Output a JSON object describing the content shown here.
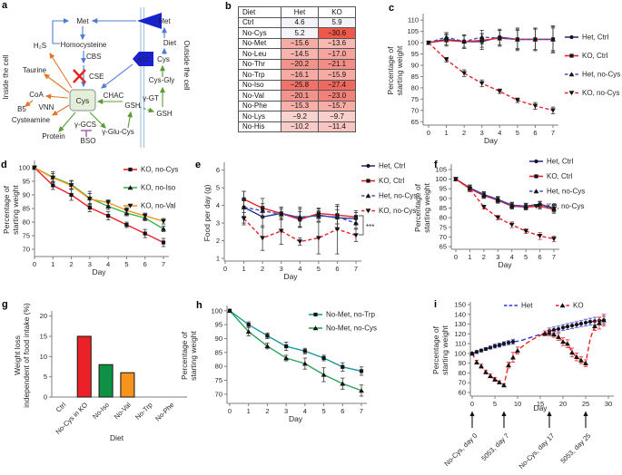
{
  "panels": {
    "a": "a",
    "b": "b",
    "c": "c",
    "d": "d",
    "e": "e",
    "f": "f",
    "g": "g",
    "h": "h",
    "i": "i"
  },
  "panel_a": {
    "nodes": {
      "met_in": "Met",
      "homocysteine": "Homocysteine",
      "cbs": "CBS",
      "cse": "CSE",
      "h2s": "H₂S",
      "taurine": "Taurine",
      "coa": "CoA",
      "b5": "B5",
      "vnn": "VNN",
      "cysteamine": "Cysteamine",
      "cys": "Cys",
      "chac": "CHAC",
      "gsh_in": "GSH",
      "ggcs": "γ-GCS",
      "bso": "BSO",
      "protein": "Protein",
      "gglucys": "γ-Glu-Cys",
      "met_out": "Met",
      "diet": "Diet",
      "cys_out": "Cys",
      "cysgly": "Cys-Gly",
      "ggt": "γ-GT",
      "gsh_out": "GSH",
      "xct": "xCT",
      "inside": "Inside the cell",
      "outside": "Outside the cell"
    },
    "colors": {
      "arrow_blue": "#4f7bd0",
      "arrow_orange": "#e0762a",
      "arrow_green": "#5b9b35",
      "transporter": "#1822cc",
      "inhibitor": "#9b59b6",
      "block_x": "#e8241c",
      "cys_box_fill": "#e3efd9",
      "cys_box_stroke": "#8a8d8f",
      "membrane": "#a9c4e2"
    }
  },
  "panel_b": {
    "headers": [
      "Diet",
      "Het",
      "KO"
    ],
    "rows": [
      [
        "Ctrl",
        "4.6",
        "5.9"
      ],
      [
        "No-Cys",
        "5.2",
        "−30.6"
      ],
      [
        "No-Met",
        "−15.6",
        "−13.6"
      ],
      [
        "No-Leu",
        "−14.5",
        "−17.0"
      ],
      [
        "No-Thr",
        "−20.2",
        "−21.1"
      ],
      [
        "No-Trp",
        "−16.1",
        "−15.9"
      ],
      [
        "No-Iso",
        "−25.8",
        "−27.4"
      ],
      [
        "No-Val",
        "−20.1",
        "−23.0"
      ],
      [
        "No-Phe",
        "−15.3",
        "−15.7"
      ],
      [
        "No-Lys",
        "−9.2",
        "−9.7"
      ],
      [
        "No-His",
        "−10.2",
        "−11.4"
      ]
    ]
  },
  "chart_data": [
    {
      "id": "c",
      "type": "line",
      "xlabel": "Day",
      "ylabel": [
        "Percentage of",
        "starting weight"
      ],
      "x": [
        0,
        1,
        2,
        3,
        4,
        5,
        6,
        7
      ],
      "xticks": [
        0,
        1,
        2,
        3,
        4,
        5,
        6,
        7
      ],
      "yticks": [
        65,
        70,
        75,
        80,
        85,
        90,
        95,
        100,
        105,
        110
      ],
      "ylim": [
        65,
        110
      ],
      "series": [
        {
          "name": "Het, Ctrl",
          "color": "#2a338e",
          "marker": "circle",
          "values": [
            100,
            101.5,
            100.5,
            100.5,
            102.5,
            101.5,
            101.5,
            101.5
          ],
          "err": [
            0,
            2.5,
            3,
            3.5,
            3.5,
            5,
            5,
            6
          ]
        },
        {
          "name": "KO, Ctrl",
          "color": "#ec2027",
          "marker": "square",
          "values": [
            100,
            101,
            100.5,
            101,
            102,
            101.5,
            101.5,
            101.5
          ],
          "err": [
            0,
            2.5,
            3,
            3,
            3.5,
            4.5,
            5,
            5.5
          ]
        },
        {
          "name": "Het, no-Cys",
          "color": "#3f51c1",
          "dashed": true,
          "marker": "triangle",
          "values": [
            100,
            102.5,
            100.5,
            102.5,
            102,
            101.5,
            101.5,
            101.5
          ],
          "err": [
            0,
            2,
            2.5,
            3,
            3.5,
            4,
            4.5,
            5
          ]
        },
        {
          "name": "KO, no-Cys",
          "color": "#ec2027",
          "dashed": true,
          "marker": "triangle-down",
          "values": [
            100,
            92.5,
            86.5,
            82,
            78.5,
            74.5,
            72,
            70
          ],
          "err": [
            0,
            1,
            1.5,
            1.5,
            1,
            1,
            1.5,
            1.5
          ]
        }
      ]
    },
    {
      "id": "d",
      "type": "line",
      "xlabel": "Day",
      "ylabel": [
        "Percentage of",
        "starting weight"
      ],
      "x": [
        0,
        1,
        2,
        3,
        4,
        5,
        6,
        7
      ],
      "xticks": [
        0,
        1,
        2,
        3,
        4,
        5,
        6,
        7
      ],
      "yticks": [
        70,
        75,
        80,
        85,
        90,
        95,
        100
      ],
      "ylim": [
        70,
        100
      ],
      "series": [
        {
          "name": "KO, no-Cys",
          "color": "#ec2027",
          "marker": "square",
          "values": [
            100,
            93.5,
            90,
            85.3,
            82.3,
            79,
            75.8,
            72.5
          ],
          "err": [
            0,
            1.5,
            2,
            1.5,
            1.5,
            1,
            1.5,
            1.5
          ]
        },
        {
          "name": "KO, no-Iso",
          "color": "#3ab54a",
          "marker": "triangle",
          "values": [
            100,
            96.5,
            93.8,
            88.8,
            85.8,
            83.3,
            81.5,
            77.5
          ],
          "err": [
            0,
            2,
            1.5,
            2.5,
            1.2,
            1,
            1,
            1
          ]
        },
        {
          "name": "KO, no-Val",
          "color": "#f7941d",
          "marker": "triangle-down",
          "values": [
            100,
            96.3,
            93.5,
            88.5,
            87.2,
            84.3,
            82.3,
            80.3
          ],
          "err": [
            0,
            1.5,
            1.5,
            2,
            1,
            1,
            1,
            1
          ]
        }
      ]
    },
    {
      "id": "e",
      "type": "line",
      "xlabel": "Day",
      "ylabel": [
        "Food per day (g)"
      ],
      "x": [
        1,
        2,
        3,
        4,
        5,
        6,
        7
      ],
      "xticks": [
        0,
        1,
        2,
        3,
        4,
        5,
        6,
        7
      ],
      "yticks": [
        1,
        2,
        3,
        4,
        5,
        6
      ],
      "ylim": [
        1,
        6
      ],
      "series": [
        {
          "name": "Het, Ctrl",
          "color": "#2a338e",
          "marker": "circle",
          "values": [
            3.9,
            3.35,
            3.55,
            3.3,
            3.45,
            3.3,
            3.25
          ],
          "err": [
            0.9,
            0.6,
            0.35,
            0.5,
            0.35,
            0.65,
            0.35
          ]
        },
        {
          "name": "KO, Ctrl",
          "color": "#ec2027",
          "marker": "square",
          "values": [
            4.35,
            3.85,
            3.55,
            3.2,
            3.55,
            3.45,
            3.35
          ],
          "err": [
            0.45,
            0.55,
            0.35,
            0.45,
            0.3,
            0.5,
            0.35
          ]
        },
        {
          "name": "Het, no-Cys",
          "color": "#3f51c1",
          "dashed": true,
          "marker": "triangle",
          "values": [
            3.9,
            3.7,
            3.5,
            3.35,
            3.4,
            3.35,
            3.0
          ],
          "err": [
            0.5,
            0.4,
            0.3,
            0.55,
            0.3,
            0.4,
            0.3
          ]
        },
        {
          "name": "KO, no-Cys",
          "color": "#ec2027",
          "dashed": true,
          "marker": "triangle-down",
          "values": [
            3.25,
            2.15,
            2.55,
            1.95,
            2.15,
            2.65,
            2.3
          ],
          "err": [
            0.35,
            0.7,
            0.75,
            0.2,
            0.9,
            1.4,
            0.35
          ]
        }
      ],
      "annotations": [
        {
          "type": "bracket",
          "label": "***"
        }
      ]
    },
    {
      "id": "f",
      "type": "line",
      "xlabel": "Day",
      "ylabel": [
        "Percentage of",
        "starting weight"
      ],
      "x": [
        0,
        1,
        2,
        3,
        4,
        5,
        6,
        7
      ],
      "xticks": [
        0,
        1,
        2,
        3,
        4,
        5,
        6,
        7
      ],
      "yticks": [
        65,
        70,
        75,
        80,
        85,
        90,
        95,
        100,
        105
      ],
      "ylim": [
        65,
        105
      ],
      "series": [
        {
          "name": "Het, Ctrl",
          "color": "#2a338e",
          "marker": "circle",
          "values": [
            100,
            95.5,
            92,
            89.5,
            86.5,
            86,
            87,
            85
          ],
          "err": [
            0,
            1.5,
            1.5,
            1.5,
            1.5,
            1.5,
            1.5,
            2
          ]
        },
        {
          "name": "KO, Ctrl",
          "color": "#ec2027",
          "marker": "square",
          "values": [
            100,
            95,
            91.5,
            89,
            86,
            85.5,
            86,
            84.3
          ],
          "err": [
            0,
            1.5,
            1.5,
            1.5,
            1.5,
            1.5,
            1.5,
            2
          ]
        },
        {
          "name": "Het, no-Cys",
          "color": "#3f51c1",
          "dashed": true,
          "marker": "triangle",
          "values": [
            100,
            95.3,
            91.8,
            89.3,
            86.3,
            85.8,
            86.8,
            84.8
          ],
          "err": [
            0,
            1.5,
            1.5,
            1.5,
            1.5,
            1.5,
            1.5,
            1.8
          ]
        },
        {
          "name": "KO, no-Cys",
          "color": "#ec2027",
          "dashed": true,
          "marker": "triangle-down",
          "err_color": "#c7453c",
          "values": [
            100,
            95,
            85.5,
            80,
            76.3,
            73,
            70.5,
            69
          ],
          "err": [
            0,
            1,
            1,
            1.2,
            1.5,
            1.2,
            1.8,
            1.5
          ]
        }
      ]
    },
    {
      "id": "g",
      "type": "bar",
      "xlabel": "Diet",
      "ylabel": [
        "Weight loss",
        "independent of food intake (%)"
      ],
      "categories": [
        "Ctrl",
        "No-Cys in KO",
        "No-Iso",
        "No-Val",
        "No-Trp",
        "No-Phe"
      ],
      "values": [
        0,
        15,
        8,
        6,
        0,
        0
      ],
      "bar_colors": [
        "",
        "#ec2027",
        "#0e9144",
        "#f7941d",
        "",
        ""
      ],
      "yticks": [
        0,
        5,
        10,
        15,
        20
      ],
      "ylim": [
        0,
        20
      ]
    },
    {
      "id": "h",
      "type": "line",
      "xlabel": "Day",
      "ylabel": [
        "Percentage of",
        "starting weight"
      ],
      "x": [
        0,
        1,
        2,
        3,
        4,
        5,
        6,
        7
      ],
      "xticks": [
        0,
        1,
        2,
        3,
        4,
        5,
        6,
        7
      ],
      "yticks": [
        70,
        75,
        80,
        85,
        90,
        95,
        100
      ],
      "ylim": [
        70,
        100
      ],
      "series": [
        {
          "name": "No-Met, no-Trp",
          "color": "#189aa5",
          "marker": "square",
          "values": [
            100,
            95,
            91,
            87.2,
            85.5,
            83,
            79.8,
            78.3
          ],
          "err": [
            0,
            1,
            1,
            1.5,
            1,
            1,
            1.5,
            1.5
          ]
        },
        {
          "name": "No-Met, no-Cys",
          "color": "#2ea25a",
          "marker": "triangle",
          "values": [
            100,
            92.5,
            87.3,
            83,
            81,
            77,
            73.8,
            71.3
          ],
          "err": [
            0,
            1.5,
            1,
            1,
            2,
            2.5,
            2,
            2
          ]
        }
      ]
    },
    {
      "id": "i",
      "type": "line",
      "xlabel": "Day",
      "ylabel": [
        "Percentage of",
        "starting weight"
      ],
      "x": [
        0,
        1,
        2,
        3,
        4,
        5,
        6,
        7,
        8,
        9,
        10,
        11,
        12,
        13,
        14,
        15,
        16,
        17,
        18,
        19,
        20,
        21,
        22,
        23,
        24,
        25,
        26,
        27,
        28,
        29
      ],
      "xticks": [
        0,
        5,
        10,
        15,
        20,
        25,
        30
      ],
      "yticks": [
        60,
        70,
        80,
        90,
        100,
        110,
        120,
        130,
        140,
        150
      ],
      "ylim": [
        60,
        150
      ],
      "series": [
        {
          "name": "Het",
          "color": "#2a35d6",
          "dashed": true,
          "marker": "circle",
          "legend_marker": false,
          "err_color": "#3a44cc",
          "values": [
            100,
            101.5,
            103,
            104.5,
            106,
            107.5,
            108.5,
            110,
            111,
            112,
            112.5,
            113.5,
            115,
            116.5,
            118,
            119.5,
            121,
            123,
            124,
            125,
            126.5,
            127.5,
            128.5,
            129.5,
            130.5,
            131.5,
            132.5,
            133,
            133.5,
            134
          ],
          "err": [
            0,
            1.5,
            1.5,
            1.5,
            1.5,
            2,
            2,
            2,
            2,
            2.5,
            0,
            0,
            0,
            0,
            0,
            0,
            0,
            3,
            3,
            3,
            3,
            3,
            3,
            3,
            3,
            3.5,
            3.5,
            4,
            3.5,
            4
          ],
          "markers_at": [
            0,
            1,
            2,
            3,
            4,
            5,
            6,
            7,
            8,
            9,
            17,
            18,
            19,
            20,
            21,
            22,
            23,
            24,
            25,
            26,
            27,
            28,
            29
          ]
        },
        {
          "name": "KO",
          "color": "#ec2027",
          "dashed": true,
          "marker": "triangle",
          "err_color": "#ec2027",
          "values": [
            100,
            91,
            87,
            81,
            77,
            73.5,
            70.5,
            67.5,
            88,
            96,
            103,
            107,
            110.5,
            113.5,
            116,
            118.5,
            120.5,
            121,
            119.5,
            117,
            112,
            110,
            101,
            96.5,
            93,
            90,
            115,
            128,
            131,
            134
          ],
          "err": [
            0,
            2,
            2,
            2,
            2,
            2,
            1.5,
            1.5,
            3,
            5,
            3.5,
            0,
            0,
            0,
            0,
            0,
            2.5,
            3,
            3,
            3.5,
            4,
            4,
            4.5,
            4,
            3.5,
            3.5,
            0,
            4.5,
            6,
            6
          ],
          "markers_at": [
            0,
            1,
            2,
            3,
            4,
            5,
            6,
            7,
            8,
            9,
            10,
            16,
            17,
            18,
            19,
            20,
            21,
            22,
            23,
            24,
            25,
            27,
            28,
            29
          ]
        }
      ],
      "treatments": [
        {
          "day": 0,
          "label": "No-Cys, day 0"
        },
        {
          "day": 7,
          "label": "5053, day 7"
        },
        {
          "day": 17,
          "label": "No-Cys, day 17"
        },
        {
          "day": 25,
          "label": "5053, day 25"
        }
      ]
    }
  ]
}
